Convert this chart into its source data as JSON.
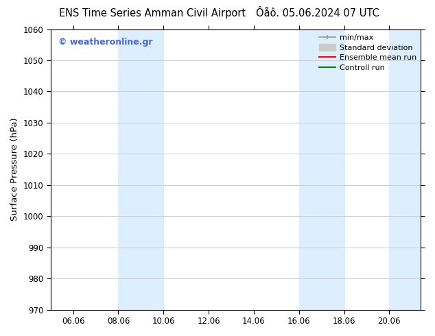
{
  "title_left": "ENS Time Series Amman Civil Airport",
  "title_right": "Ôåô. 05.06.2024 07 UTC",
  "ylabel": "Surface Pressure (hPa)",
  "ylim": [
    970,
    1060
  ],
  "yticks": [
    970,
    980,
    990,
    1000,
    1010,
    1020,
    1030,
    1040,
    1050,
    1060
  ],
  "xtick_labels": [
    "06.06",
    "08.06",
    "10.06",
    "12.06",
    "14.06",
    "16.06",
    "18.06",
    "20.06"
  ],
  "xtick_positions": [
    1,
    3,
    5,
    7,
    9,
    11,
    13,
    15
  ],
  "x_min": 0.0,
  "x_max": 16.4,
  "shaded_bands": [
    {
      "x_start": 3.0,
      "x_end": 5.0
    },
    {
      "x_start": 11.0,
      "x_end": 13.0
    },
    {
      "x_start": 15.0,
      "x_end": 16.4
    }
  ],
  "shaded_color": "#ddeeff",
  "watermark_text": "© weatheronline.gr",
  "watermark_color": "#4169e1",
  "legend_entries": [
    {
      "label": "min/max",
      "color": "#999999",
      "lw": 1.2
    },
    {
      "label": "Standard deviation",
      "color": "#cccccc",
      "lw": 8
    },
    {
      "label": "Ensemble mean run",
      "color": "red",
      "lw": 1.5
    },
    {
      "label": "Controll run",
      "color": "green",
      "lw": 1.5
    }
  ],
  "bg_color": "white",
  "grid_color": "#cccccc",
  "tick_label_fontsize": 8.5,
  "axis_label_fontsize": 9.5,
  "title_fontsize": 10.5
}
